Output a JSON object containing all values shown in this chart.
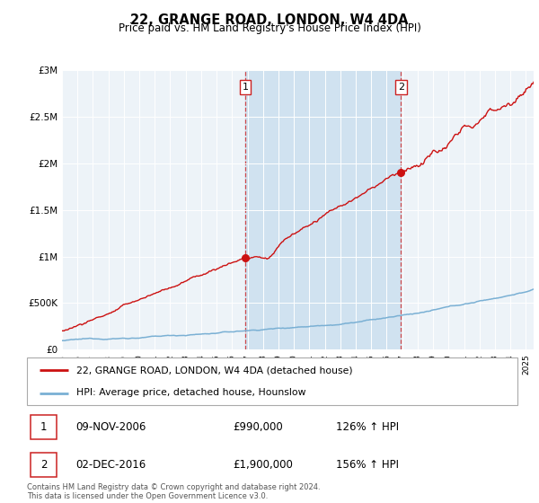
{
  "title": "22, GRANGE ROAD, LONDON, W4 4DA",
  "subtitle": "Price paid vs. HM Land Registry's House Price Index (HPI)",
  "ylim": [
    0,
    3000000
  ],
  "xlim_start": 1995.0,
  "xlim_end": 2025.5,
  "hpi_color": "#7ab0d4",
  "price_color": "#cc1111",
  "sale1_year": 2006.86,
  "sale1_price": 990000,
  "sale2_year": 2016.92,
  "sale2_price": 1900000,
  "legend_line1": "22, GRANGE ROAD, LONDON, W4 4DA (detached house)",
  "legend_line2": "HPI: Average price, detached house, Hounslow",
  "table_row1": [
    "1",
    "09-NOV-2006",
    "£990,000",
    "126% ↑ HPI"
  ],
  "table_row2": [
    "2",
    "02-DEC-2016",
    "£1,900,000",
    "156% ↑ HPI"
  ],
  "footer": "Contains HM Land Registry data © Crown copyright and database right 2024.\nThis data is licensed under the Open Government Licence v3.0.",
  "bg_color": "#e6eef5",
  "highlight_color": "#d0e2f0",
  "plot_bg": "#edf3f8"
}
